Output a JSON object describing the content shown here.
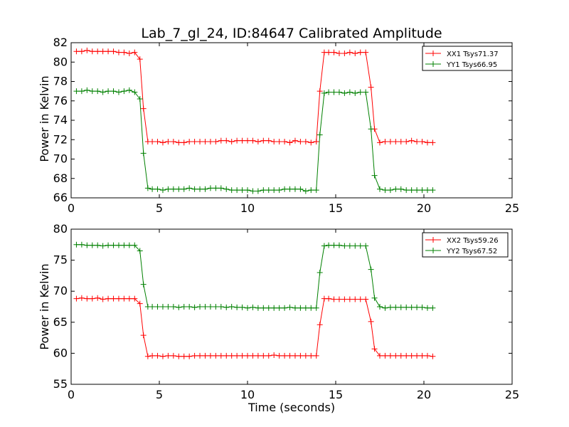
{
  "title": "Lab_7_gl_24, ID:84647 Calibrated Amplitude",
  "chart_data": [
    {
      "type": "line",
      "ylabel": "Power in Kelvin",
      "xlabel": "",
      "xlim": [
        0,
        25
      ],
      "ylim": [
        66,
        82
      ],
      "xticks": [
        0,
        5,
        10,
        15,
        20,
        25
      ],
      "yticks": [
        66,
        68,
        70,
        72,
        74,
        76,
        78,
        80,
        82
      ],
      "legend_placement": "top-right",
      "x": [
        0.3,
        0.6,
        0.9,
        1.2,
        1.5,
        1.8,
        2.1,
        2.4,
        2.7,
        3.0,
        3.3,
        3.6,
        3.9,
        4.1,
        4.35,
        4.6,
        4.9,
        5.2,
        5.5,
        5.8,
        6.1,
        6.4,
        6.7,
        7.0,
        7.3,
        7.6,
        7.9,
        8.2,
        8.5,
        8.8,
        9.1,
        9.4,
        9.7,
        10.0,
        10.3,
        10.6,
        10.9,
        11.2,
        11.5,
        11.8,
        12.1,
        12.4,
        12.7,
        13.0,
        13.3,
        13.6,
        13.9,
        14.1,
        14.35,
        14.6,
        14.9,
        15.2,
        15.5,
        15.8,
        16.1,
        16.4,
        16.7,
        17.0,
        17.2,
        17.5,
        17.8,
        18.1,
        18.4,
        18.7,
        19.0,
        19.3,
        19.6,
        19.9,
        20.2,
        20.5
      ],
      "series": [
        {
          "name": "XX1 Tsys71.37",
          "color": "#ff0000",
          "values": [
            81.1,
            81.1,
            81.2,
            81.1,
            81.1,
            81.1,
            81.1,
            81.1,
            81.0,
            81.0,
            80.9,
            81.0,
            80.3,
            75.2,
            71.8,
            71.8,
            71.8,
            71.7,
            71.8,
            71.8,
            71.7,
            71.7,
            71.8,
            71.8,
            71.8,
            71.8,
            71.8,
            71.8,
            71.9,
            71.9,
            71.8,
            71.9,
            71.9,
            71.9,
            71.9,
            71.8,
            71.9,
            71.9,
            71.8,
            71.8,
            71.8,
            71.7,
            71.9,
            71.8,
            71.8,
            71.7,
            71.8,
            77.0,
            81.0,
            81.0,
            81.0,
            80.9,
            80.9,
            81.0,
            80.9,
            81.0,
            81.0,
            77.4,
            73.1,
            71.7,
            71.8,
            71.8,
            71.8,
            71.8,
            71.8,
            71.9,
            71.8,
            71.8,
            71.7,
            71.7
          ]
        },
        {
          "name": "YY1 Tsys66.95",
          "color": "#008000",
          "values": [
            77.0,
            77.0,
            77.1,
            77.0,
            77.0,
            76.9,
            77.0,
            77.0,
            76.9,
            77.0,
            77.1,
            76.9,
            76.2,
            70.6,
            67.0,
            66.9,
            66.9,
            66.8,
            66.9,
            66.9,
            66.9,
            66.9,
            67.0,
            66.9,
            66.9,
            66.9,
            67.0,
            67.0,
            67.0,
            66.9,
            66.8,
            66.8,
            66.8,
            66.8,
            66.7,
            66.7,
            66.8,
            66.8,
            66.8,
            66.8,
            66.9,
            66.9,
            66.9,
            66.9,
            66.7,
            66.8,
            66.8,
            72.5,
            76.8,
            76.9,
            76.9,
            76.9,
            76.8,
            76.9,
            76.8,
            76.9,
            76.9,
            73.1,
            68.3,
            66.9,
            66.8,
            66.8,
            66.9,
            66.9,
            66.8,
            66.8,
            66.8,
            66.8,
            66.8,
            66.8
          ]
        }
      ]
    },
    {
      "type": "line",
      "ylabel": "Power in Kelvin",
      "xlabel": "Time (seconds)",
      "xlim": [
        0,
        25
      ],
      "ylim": [
        55,
        80
      ],
      "xticks": [
        0,
        5,
        10,
        15,
        20,
        25
      ],
      "yticks": [
        55,
        60,
        65,
        70,
        75,
        80
      ],
      "legend_placement": "top-right",
      "x": [
        0.3,
        0.6,
        0.9,
        1.2,
        1.5,
        1.8,
        2.1,
        2.4,
        2.7,
        3.0,
        3.3,
        3.6,
        3.9,
        4.1,
        4.35,
        4.6,
        4.9,
        5.2,
        5.5,
        5.8,
        6.1,
        6.4,
        6.7,
        7.0,
        7.3,
        7.6,
        7.9,
        8.2,
        8.5,
        8.8,
        9.1,
        9.4,
        9.7,
        10.0,
        10.3,
        10.6,
        10.9,
        11.2,
        11.5,
        11.8,
        12.1,
        12.4,
        12.7,
        13.0,
        13.3,
        13.6,
        13.9,
        14.1,
        14.35,
        14.6,
        14.9,
        15.2,
        15.5,
        15.8,
        16.1,
        16.4,
        16.7,
        17.0,
        17.2,
        17.5,
        17.8,
        18.1,
        18.4,
        18.7,
        19.0,
        19.3,
        19.6,
        19.9,
        20.2,
        20.5
      ],
      "series": [
        {
          "name": "XX2 Tsys59.26",
          "color": "#ff0000",
          "values": [
            68.8,
            68.9,
            68.8,
            68.8,
            68.9,
            68.7,
            68.8,
            68.8,
            68.8,
            68.8,
            68.8,
            68.8,
            68.0,
            62.9,
            59.5,
            59.6,
            59.6,
            59.5,
            59.6,
            59.6,
            59.5,
            59.5,
            59.5,
            59.6,
            59.6,
            59.6,
            59.6,
            59.6,
            59.6,
            59.6,
            59.6,
            59.6,
            59.6,
            59.6,
            59.6,
            59.6,
            59.6,
            59.6,
            59.7,
            59.6,
            59.6,
            59.6,
            59.6,
            59.6,
            59.6,
            59.6,
            59.6,
            64.6,
            68.8,
            68.8,
            68.7,
            68.7,
            68.7,
            68.7,
            68.7,
            68.7,
            68.7,
            65.1,
            60.7,
            59.6,
            59.6,
            59.6,
            59.6,
            59.6,
            59.6,
            59.6,
            59.6,
            59.6,
            59.6,
            59.5
          ]
        },
        {
          "name": "YY2 Tsys67.52",
          "color": "#008000",
          "values": [
            77.5,
            77.5,
            77.4,
            77.4,
            77.4,
            77.3,
            77.4,
            77.4,
            77.4,
            77.4,
            77.4,
            77.4,
            76.5,
            71.1,
            67.5,
            67.5,
            67.5,
            67.5,
            67.5,
            67.5,
            67.4,
            67.5,
            67.5,
            67.4,
            67.5,
            67.5,
            67.5,
            67.5,
            67.5,
            67.4,
            67.5,
            67.4,
            67.4,
            67.3,
            67.4,
            67.3,
            67.3,
            67.3,
            67.3,
            67.3,
            67.3,
            67.4,
            67.3,
            67.3,
            67.3,
            67.3,
            67.3,
            73.0,
            77.3,
            77.4,
            77.4,
            77.4,
            77.3,
            77.3,
            77.3,
            77.3,
            77.3,
            73.5,
            68.9,
            67.5,
            67.3,
            67.4,
            67.4,
            67.4,
            67.4,
            67.4,
            67.4,
            67.4,
            67.3,
            67.3
          ]
        }
      ]
    }
  ]
}
